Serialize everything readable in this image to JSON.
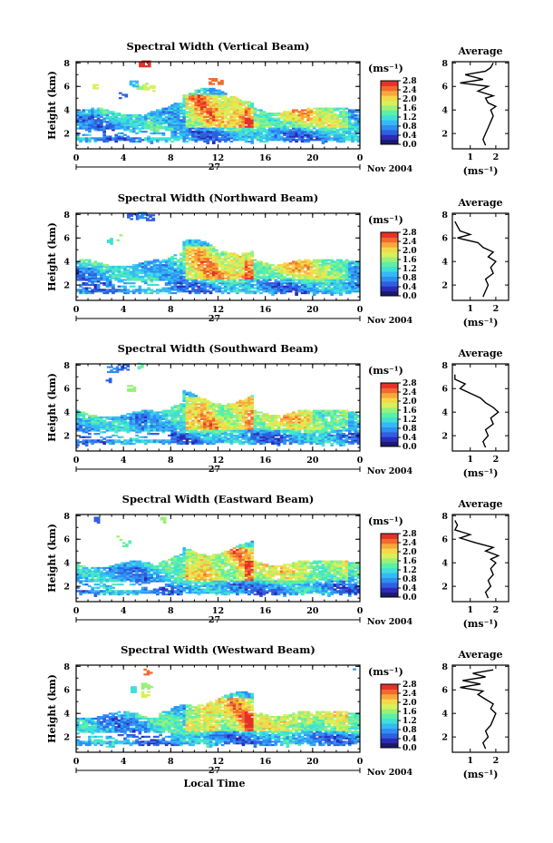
{
  "colors": {
    "scale": [
      "#1a1a6e",
      "#2b2bb8",
      "#2f5fe0",
      "#2f8ef2",
      "#35b9f5",
      "#3ee0d8",
      "#5af0a8",
      "#9af07a",
      "#d8f05a",
      "#f5d84a",
      "#f7a83c",
      "#f26a2e",
      "#e63028"
    ],
    "axis": "#000000"
  },
  "chart_data": [
    {
      "type": "heatmap",
      "title": "Spectral Width (Vertical Beam)",
      "ylabel": "Height (km)",
      "x_ticks": [
        "0",
        "4",
        "8",
        "12",
        "16",
        "20",
        "0"
      ],
      "y_ticks": [
        "2",
        "4",
        "6",
        "8"
      ],
      "day_label": "27",
      "date_label": "Nov 2004",
      "xlim": [
        0,
        24
      ],
      "ylim": [
        0.7,
        8.1
      ],
      "colorbar": {
        "unit": "(ms⁻¹)",
        "ticks": [
          "2.8",
          "2.4",
          "2.0",
          "1.6",
          "1.2",
          "0.8",
          "0.4",
          "0.0"
        ],
        "range": [
          0,
          2.8
        ]
      },
      "profile": {
        "title": "Average",
        "xlabel": "(ms⁻¹)",
        "x_ticks": [
          "1",
          "2"
        ],
        "y_ticks": [
          "2",
          "4",
          "6",
          "8"
        ],
        "xlim": [
          0.3,
          2.5
        ],
        "points": [
          [
            1.6,
            1.0
          ],
          [
            1.5,
            1.5
          ],
          [
            1.6,
            2.0
          ],
          [
            1.7,
            2.5
          ],
          [
            1.8,
            3.0
          ],
          [
            1.9,
            3.5
          ],
          [
            1.8,
            4.0
          ],
          [
            2.0,
            4.3
          ],
          [
            1.7,
            4.6
          ],
          [
            1.6,
            5.0
          ],
          [
            1.9,
            5.2
          ],
          [
            1.3,
            5.6
          ],
          [
            1.7,
            6.0
          ],
          [
            0.6,
            6.3
          ],
          [
            1.5,
            6.6
          ],
          [
            0.8,
            7.0
          ],
          [
            1.6,
            7.3
          ],
          [
            1.8,
            7.6
          ],
          [
            1.9,
            8.0
          ]
        ]
      }
    },
    {
      "type": "heatmap",
      "title": "Spectral Width (Northward Beam)",
      "ylabel": "Height (km)",
      "x_ticks": [
        "0",
        "4",
        "8",
        "12",
        "16",
        "20",
        "0"
      ],
      "y_ticks": [
        "2",
        "4",
        "6",
        "8"
      ],
      "day_label": "27",
      "date_label": "Nov 2004",
      "xlim": [
        0,
        24
      ],
      "ylim": [
        0.7,
        8.1
      ],
      "colorbar": {
        "unit": "(ms⁻¹)",
        "ticks": [
          "2.8",
          "2.4",
          "2.0",
          "1.6",
          "1.2",
          "0.8",
          "0.4",
          "0.0"
        ],
        "range": [
          0,
          2.8
        ]
      },
      "profile": {
        "title": "Average",
        "xlabel": "(ms⁻¹)",
        "x_ticks": [
          "1",
          "2"
        ],
        "y_ticks": [
          "2",
          "4",
          "6",
          "8"
        ],
        "xlim": [
          0.3,
          2.5
        ],
        "points": [
          [
            1.5,
            1.0
          ],
          [
            1.6,
            1.5
          ],
          [
            1.7,
            2.0
          ],
          [
            1.6,
            2.5
          ],
          [
            1.9,
            3.0
          ],
          [
            1.8,
            3.5
          ],
          [
            2.0,
            4.0
          ],
          [
            1.7,
            4.4
          ],
          [
            1.9,
            4.8
          ],
          [
            1.5,
            5.2
          ],
          [
            1.3,
            5.6
          ],
          [
            0.5,
            6.0
          ],
          [
            1.0,
            6.3
          ],
          [
            0.6,
            6.6
          ],
          [
            0.5,
            7.0
          ],
          [
            0.4,
            7.4
          ]
        ]
      }
    },
    {
      "type": "heatmap",
      "title": "Spectral Width (Southward Beam)",
      "ylabel": "Height (km)",
      "x_ticks": [
        "0",
        "4",
        "8",
        "12",
        "16",
        "20",
        "0"
      ],
      "y_ticks": [
        "2",
        "4",
        "6",
        "8"
      ],
      "day_label": "27",
      "date_label": "Nov 2004",
      "xlim": [
        0,
        24
      ],
      "ylim": [
        0.7,
        8.1
      ],
      "colorbar": {
        "unit": "(ms⁻¹)",
        "ticks": [
          "2.8",
          "2.4",
          "2.0",
          "1.6",
          "1.2",
          "0.8",
          "0.4",
          "0.0"
        ],
        "range": [
          0,
          2.8
        ]
      },
      "profile": {
        "title": "Average",
        "xlabel": "(ms⁻¹)",
        "x_ticks": [
          "1",
          "2"
        ],
        "y_ticks": [
          "2",
          "4",
          "6",
          "8"
        ],
        "xlim": [
          0.3,
          2.5
        ],
        "points": [
          [
            1.6,
            1.0
          ],
          [
            1.5,
            1.5
          ],
          [
            1.7,
            2.0
          ],
          [
            1.6,
            2.5
          ],
          [
            1.9,
            3.0
          ],
          [
            1.8,
            3.5
          ],
          [
            2.1,
            4.0
          ],
          [
            1.9,
            4.4
          ],
          [
            1.6,
            4.8
          ],
          [
            1.4,
            5.2
          ],
          [
            1.0,
            5.6
          ],
          [
            0.6,
            6.0
          ],
          [
            0.8,
            6.4
          ],
          [
            0.4,
            6.8
          ],
          [
            0.4,
            7.2
          ]
        ]
      }
    },
    {
      "type": "heatmap",
      "title": "Spectral Width (Eastward Beam)",
      "ylabel": "Height (km)",
      "x_ticks": [
        "0",
        "4",
        "8",
        "12",
        "16",
        "20",
        "0"
      ],
      "y_ticks": [
        "2",
        "4",
        "6",
        "8"
      ],
      "day_label": "27",
      "date_label": "Nov 2004",
      "xlim": [
        0,
        24
      ],
      "ylim": [
        0.7,
        8.1
      ],
      "colorbar": {
        "unit": "(ms⁻¹)",
        "ticks": [
          "2.8",
          "2.4",
          "2.0",
          "1.6",
          "1.2",
          "0.8",
          "0.4",
          "0.0"
        ],
        "range": [
          0,
          2.8
        ]
      },
      "profile": {
        "title": "Average",
        "xlabel": "(ms⁻¹)",
        "x_ticks": [
          "1",
          "2"
        ],
        "y_ticks": [
          "2",
          "4",
          "6",
          "8"
        ],
        "xlim": [
          0.3,
          2.5
        ],
        "points": [
          [
            1.7,
            1.0
          ],
          [
            1.6,
            1.5
          ],
          [
            1.8,
            2.0
          ],
          [
            1.7,
            2.5
          ],
          [
            1.9,
            3.0
          ],
          [
            1.8,
            3.5
          ],
          [
            2.0,
            4.0
          ],
          [
            1.8,
            4.3
          ],
          [
            2.1,
            4.6
          ],
          [
            1.6,
            5.0
          ],
          [
            1.9,
            5.3
          ],
          [
            1.2,
            5.7
          ],
          [
            0.6,
            6.1
          ],
          [
            1.0,
            6.4
          ],
          [
            0.4,
            6.8
          ],
          [
            0.5,
            7.2
          ],
          [
            0.4,
            7.6
          ]
        ]
      }
    },
    {
      "type": "heatmap",
      "title": "Spectral Width (Westward Beam)",
      "ylabel": "Height (km)",
      "xlabel": "Local Time",
      "x_ticks": [
        "0",
        "4",
        "8",
        "12",
        "16",
        "20",
        "0"
      ],
      "y_ticks": [
        "2",
        "4",
        "6",
        "8"
      ],
      "day_label": "27",
      "date_label": "Nov 2004",
      "xlim": [
        0,
        24
      ],
      "ylim": [
        0.7,
        8.1
      ],
      "colorbar": {
        "unit": "(ms⁻¹)",
        "ticks": [
          "2.8",
          "2.4",
          "2.0",
          "1.6",
          "1.2",
          "0.8",
          "0.4",
          "0.0"
        ],
        "range": [
          0,
          2.8
        ]
      },
      "profile": {
        "title": "Average",
        "xlabel": "(ms⁻¹)",
        "x_ticks": [
          "1",
          "2"
        ],
        "y_ticks": [
          "2",
          "4",
          "6",
          "8"
        ],
        "xlim": [
          0.3,
          2.5
        ],
        "points": [
          [
            1.6,
            1.0
          ],
          [
            1.5,
            1.5
          ],
          [
            1.7,
            2.0
          ],
          [
            1.6,
            2.5
          ],
          [
            1.8,
            3.0
          ],
          [
            1.9,
            3.5
          ],
          [
            2.0,
            4.0
          ],
          [
            1.8,
            4.4
          ],
          [
            1.9,
            4.8
          ],
          [
            1.6,
            5.2
          ],
          [
            1.3,
            5.6
          ],
          [
            1.5,
            5.9
          ],
          [
            0.6,
            6.2
          ],
          [
            1.4,
            6.5
          ],
          [
            0.7,
            6.8
          ],
          [
            1.6,
            7.1
          ],
          [
            1.1,
            7.4
          ],
          [
            1.9,
            7.7
          ]
        ]
      }
    }
  ]
}
